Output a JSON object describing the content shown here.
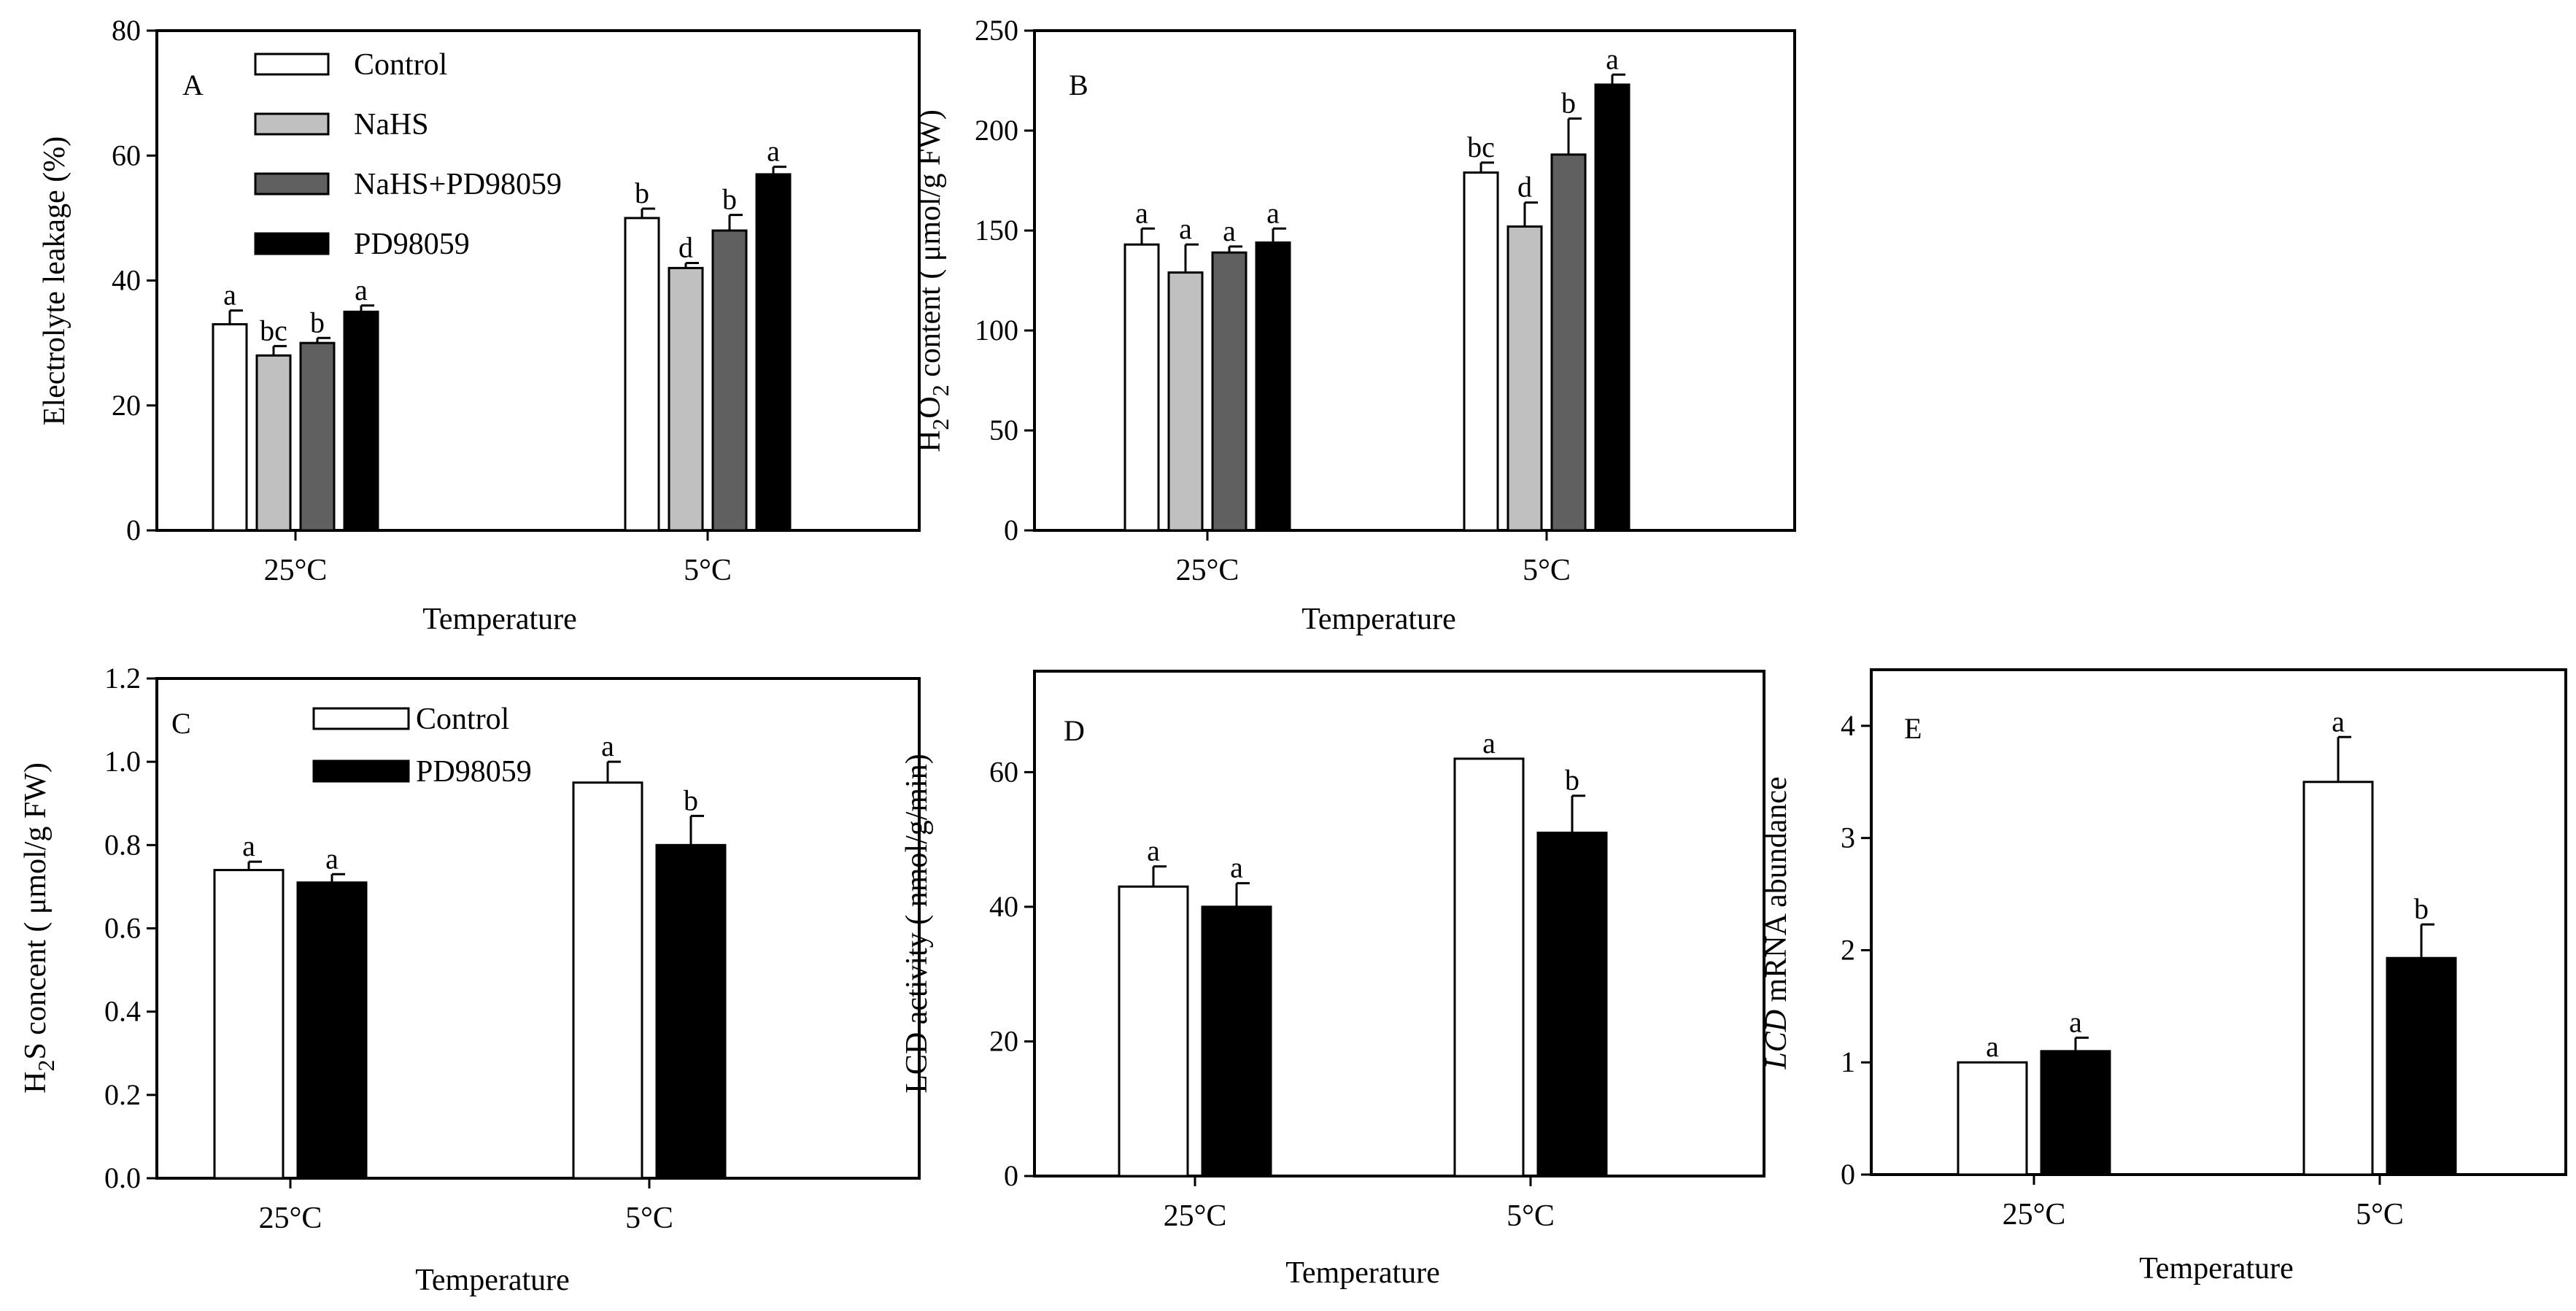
{
  "figure": {
    "xlabel": "Temperature",
    "categories": [
      "25°C",
      "5°C"
    ]
  },
  "series_styles": [
    {
      "name": "Control",
      "fill": "#ffffff"
    },
    {
      "name": "NaHS",
      "fill": "#c0c0c0"
    },
    {
      "name": "NaHS+PD98059",
      "fill": "#606060"
    },
    {
      "name": "PD98059",
      "fill": "#000000"
    }
  ],
  "chart_data": [
    {
      "panel": "A",
      "type": "bar",
      "ylabel": "Electrolyte leakage (%)",
      "xlabel": "Temperature",
      "categories": [
        "25°C",
        "5°C"
      ],
      "ylim": [
        0,
        80
      ],
      "yticks": [
        "0",
        "20",
        "40",
        "60",
        "80"
      ],
      "series": [
        {
          "name": "Control",
          "values": [
            33,
            50
          ],
          "errors": [
            2.2,
            1.5
          ],
          "letters": [
            "a",
            "b"
          ]
        },
        {
          "name": "NaHS",
          "values": [
            28,
            42
          ],
          "errors": [
            1.5,
            0.8
          ],
          "letters": [
            "bc",
            "d"
          ]
        },
        {
          "name": "NaHS+PD98059",
          "values": [
            30,
            48
          ],
          "errors": [
            0.8,
            2.5
          ],
          "letters": [
            "b",
            "b"
          ]
        },
        {
          "name": "PD98059",
          "values": [
            35,
            57
          ],
          "errors": [
            1.0,
            1.2
          ],
          "letters": [
            "a",
            "a"
          ]
        }
      ],
      "legend": [
        "Control",
        "NaHS",
        "NaHS+PD98059",
        "PD98059"
      ]
    },
    {
      "panel": "B",
      "type": "bar",
      "ylabel": "H2O2 content ( μmol/g FW)",
      "ylabel_parts": [
        "H",
        "2",
        "O",
        "2",
        " content ( μmol/g FW)"
      ],
      "xlabel": "Temperature",
      "categories": [
        "25°C",
        "5°C"
      ],
      "ylim": [
        0,
        250
      ],
      "yticks": [
        "0",
        "50",
        "100",
        "150",
        "200",
        "250"
      ],
      "series": [
        {
          "name": "Control",
          "values": [
            143,
            179
          ],
          "errors": [
            8,
            5
          ],
          "letters": [
            "a",
            "bc"
          ]
        },
        {
          "name": "NaHS",
          "values": [
            129,
            152
          ],
          "errors": [
            14,
            12
          ],
          "letters": [
            "a",
            "d"
          ]
        },
        {
          "name": "NaHS+PD98059",
          "values": [
            139,
            188
          ],
          "errors": [
            3,
            18
          ],
          "letters": [
            "a",
            "b"
          ]
        },
        {
          "name": "PD98059",
          "values": [
            144,
            223
          ],
          "errors": [
            7,
            5
          ],
          "letters": [
            "a",
            "a"
          ]
        }
      ]
    },
    {
      "panel": "C",
      "type": "bar",
      "ylabel": "H2S concent ( μmol/g FW)",
      "ylabel_parts": [
        "H",
        "2",
        "S  concent ( μmol/g FW)"
      ],
      "xlabel": "Temperature",
      "categories": [
        "25°C",
        "5°C"
      ],
      "ylim": [
        0,
        1.2
      ],
      "yticks": [
        "0.0",
        "0.2",
        "0.4",
        "0.6",
        "0.8",
        "1.0",
        "1.2"
      ],
      "series": [
        {
          "name": "Control",
          "values": [
            0.74,
            0.95
          ],
          "errors": [
            0.02,
            0.05
          ],
          "letters": [
            "a",
            "a"
          ]
        },
        {
          "name": "PD98059",
          "values": [
            0.71,
            0.8
          ],
          "errors": [
            0.02,
            0.07
          ],
          "letters": [
            "a",
            "b"
          ]
        }
      ],
      "legend": [
        "Control",
        "PD98059"
      ]
    },
    {
      "panel": "D",
      "type": "bar",
      "ylabel": "LCD activity ( nmol/g/min)",
      "xlabel": "Temperature",
      "categories": [
        "25°C",
        "5°C"
      ],
      "ylim": [
        0,
        75
      ],
      "yticks": [
        "0",
        "20",
        "40",
        "60"
      ],
      "series": [
        {
          "name": "Control",
          "values": [
            43,
            62
          ],
          "errors": [
            3,
            0
          ],
          "letters": [
            "a",
            "a"
          ]
        },
        {
          "name": "PD98059",
          "values": [
            40,
            51
          ],
          "errors": [
            3.5,
            5.5
          ],
          "letters": [
            "a",
            "b"
          ]
        }
      ]
    },
    {
      "panel": "E",
      "type": "bar",
      "ylabel": "LCD mRNA abundance",
      "ylabel_parts": [
        "LCD",
        " mRNA abundance"
      ],
      "xlabel": "Temperature",
      "categories": [
        "25°C",
        "5°C"
      ],
      "ylim": [
        0,
        4.5
      ],
      "yticks": [
        "0",
        "1",
        "2",
        "3",
        "4"
      ],
      "series": [
        {
          "name": "Control",
          "values": [
            1.0,
            3.5
          ],
          "errors": [
            0,
            0.4
          ],
          "letters": [
            "a",
            "a"
          ]
        },
        {
          "name": "PD98059",
          "values": [
            1.1,
            1.93
          ],
          "errors": [
            0.12,
            0.3
          ],
          "letters": [
            "a",
            "b"
          ]
        }
      ]
    }
  ]
}
